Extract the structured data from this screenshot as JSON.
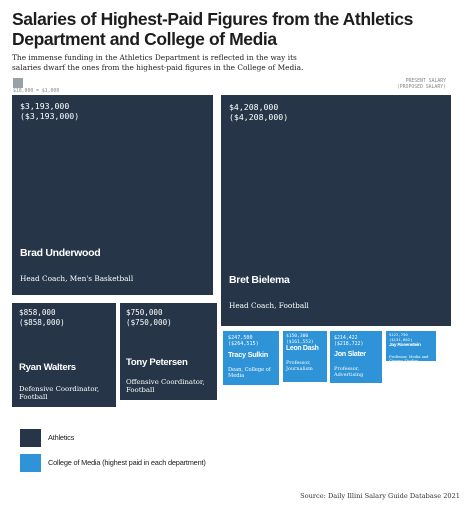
{
  "chart_data": {
    "type": "treemap",
    "title": "Salaries of Highest-Paid Figures from the Athletics Department and College of Media",
    "subtitle": "The immense funding in the Athletics Department is reflected in the way its salaries dwarf the ones from the highest-paid figures in the College of Media.",
    "scale_note": "$10,000 = $1,000",
    "key_note": [
      "PRESENT SALARY",
      "(PROPOSED SALARY)"
    ],
    "series": [
      {
        "name": "Athletics",
        "color": "#263648"
      },
      {
        "name": "College of Media (highest paid in each department)",
        "color": "#2e93d7"
      }
    ],
    "items": [
      {
        "name": "Brad Underwood",
        "role": "Head Coach, Men's Basketball",
        "series": "Athletics",
        "salary_label": "$3,193,000",
        "proposed_label": "($3,193,000)",
        "value": 3193000,
        "proposed": 3193000
      },
      {
        "name": "Bret Bielema",
        "role": "Head Coach, Football",
        "series": "Athletics",
        "salary_label": "$4,208,000",
        "proposed_label": "($4,208,000)",
        "value": 4208000,
        "proposed": 4208000
      },
      {
        "name": "Ryan Walters",
        "role": "Defensive Coordinator, Football",
        "series": "Athletics",
        "salary_label": "$858,000",
        "proposed_label": "($858,000)",
        "value": 858000,
        "proposed": 858000
      },
      {
        "name": "Tony Petersen",
        "role": "Offensive Coordinator, Football",
        "series": "Athletics",
        "salary_label": "$750,000",
        "proposed_label": "($750,000)",
        "value": 750000,
        "proposed": 750000
      },
      {
        "name": "Tracy Sulkin",
        "role": "Dean, College of Media",
        "series": "College of Media",
        "salary_label": "$247,500",
        "proposed_label": "($264,515)",
        "value": 247500,
        "proposed": 264515
      },
      {
        "name": "Leon Dash",
        "role": "Professor, Journalism",
        "series": "College of Media",
        "salary_label": "$150,300",
        "proposed_label": "($161,553)",
        "value": 150300,
        "proposed": 161553
      },
      {
        "name": "Jon Slater",
        "role": "Professor, Advertising",
        "series": "College of Media",
        "salary_label": "$214,422",
        "proposed_label": "($218,722)",
        "value": 214422,
        "proposed": 218722
      },
      {
        "name": "Jay Rosenstein",
        "role": "Professor, Media and Cinema Studies",
        "series": "College of Media",
        "salary_label": "$122,750",
        "proposed_label": "($131,862)",
        "value": 122750,
        "proposed": 131862
      }
    ],
    "source": "Source: Daily Illini Salary Guide Database 2021"
  }
}
